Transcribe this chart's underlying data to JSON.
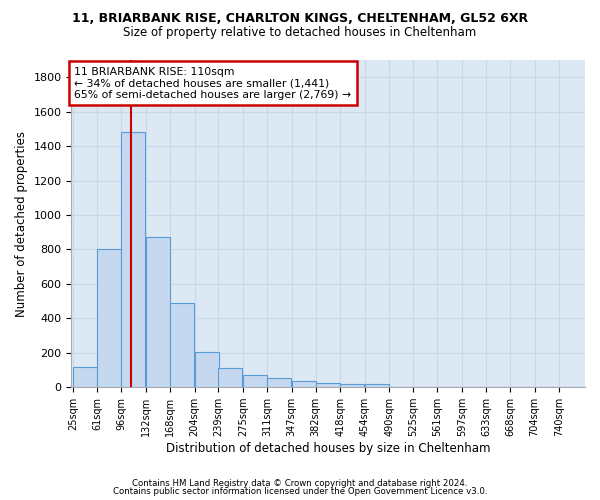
{
  "title1": "11, BRIARBANK RISE, CHARLTON KINGS, CHELTENHAM, GL52 6XR",
  "title2": "Size of property relative to detached houses in Cheltenham",
  "xlabel": "Distribution of detached houses by size in Cheltenham",
  "ylabel": "Number of detached properties",
  "footnote1": "Contains HM Land Registry data © Crown copyright and database right 2024.",
  "footnote2": "Contains public sector information licensed under the Open Government Licence v3.0.",
  "bar_labels": [
    "25sqm",
    "61sqm",
    "96sqm",
    "132sqm",
    "168sqm",
    "204sqm",
    "239sqm",
    "275sqm",
    "311sqm",
    "347sqm",
    "382sqm",
    "418sqm",
    "454sqm",
    "490sqm",
    "525sqm",
    "561sqm",
    "597sqm",
    "633sqm",
    "668sqm",
    "704sqm",
    "740sqm"
  ],
  "bar_values": [
    120,
    800,
    1480,
    870,
    490,
    205,
    110,
    70,
    55,
    35,
    25,
    20,
    20,
    0,
    0,
    0,
    0,
    0,
    0,
    0,
    0
  ],
  "bar_color": "#c5d8f0",
  "bar_edge_color": "#5b9bd5",
  "annotation_text_line1": "11 BRIARBANK RISE: 110sqm",
  "annotation_text_line2": "← 34% of detached houses are smaller (1,441)",
  "annotation_text_line3": "65% of semi-detached houses are larger (2,769) →",
  "annotation_box_color": "#ffffff",
  "annotation_box_edge": "#cc0000",
  "red_line_color": "#cc0000",
  "grid_color": "#c8d8e8",
  "background_color": "#dce8f4",
  "ylim": [
    0,
    1900
  ],
  "property_sqm": 110,
  "bin_width": 36
}
